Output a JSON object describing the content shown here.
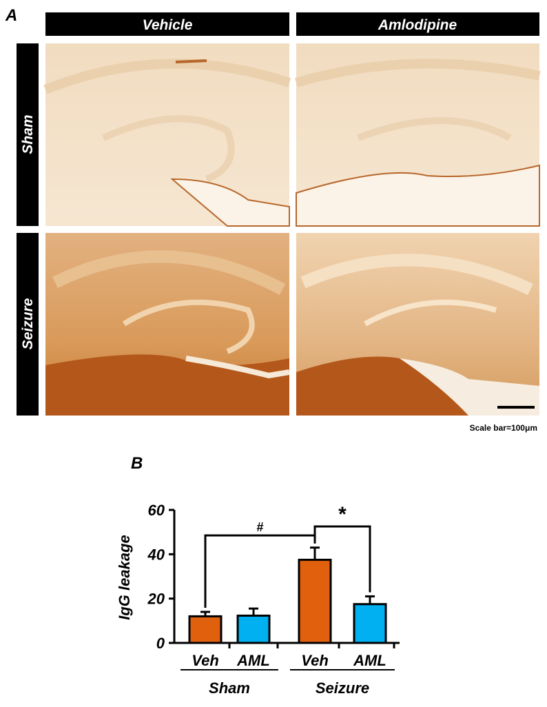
{
  "panel_a": {
    "label": "A",
    "columns": [
      "Vehicle",
      "Amlodipine"
    ],
    "rows": [
      "Sham",
      "Seizure"
    ],
    "scale_bar": "Scale bar=100μm"
  },
  "chart_data": {
    "type": "bar",
    "panel_label": "B",
    "ylabel": "IgG leakage",
    "categories": [
      "Veh",
      "AML",
      "Veh",
      "AML"
    ],
    "groups": [
      "Sham",
      "Seizure"
    ],
    "values": [
      12,
      12.3,
      37.5,
      17.5
    ],
    "errors": [
      2,
      3.2,
      5.5,
      3.5
    ],
    "colors": [
      "#e0600e",
      "#00b0f0",
      "#e0600e",
      "#00b0f0"
    ],
    "ylim": [
      0,
      60
    ],
    "yticks": [
      0,
      20,
      40,
      60
    ],
    "annotations": [
      {
        "text": "#"
      },
      {
        "text": "*"
      }
    ]
  }
}
